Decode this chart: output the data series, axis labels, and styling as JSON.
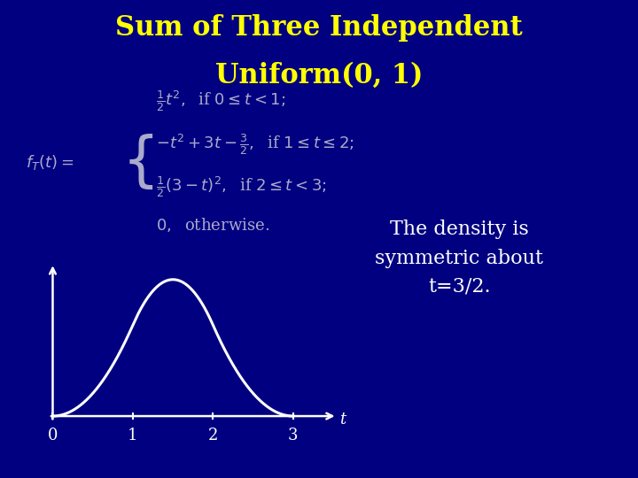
{
  "title_line1": "Sum of Three Independent",
  "title_line2": "Uniform(0, 1)",
  "title_color": "#FFFF00",
  "background_color": "#000080",
  "curve_color": "#FFFFFF",
  "axis_color": "#FFFFFF",
  "annotation_text": "The density is\nsymmetric about\nt=3/2.",
  "annotation_color": "#FFFFFF",
  "formula_color": "#AAAACC",
  "tick_labels": [
    "0",
    "1",
    "2",
    "3"
  ],
  "t_label": "t",
  "title_fontsize": 22,
  "annotation_fontsize": 16,
  "formula_fontsize": 13
}
